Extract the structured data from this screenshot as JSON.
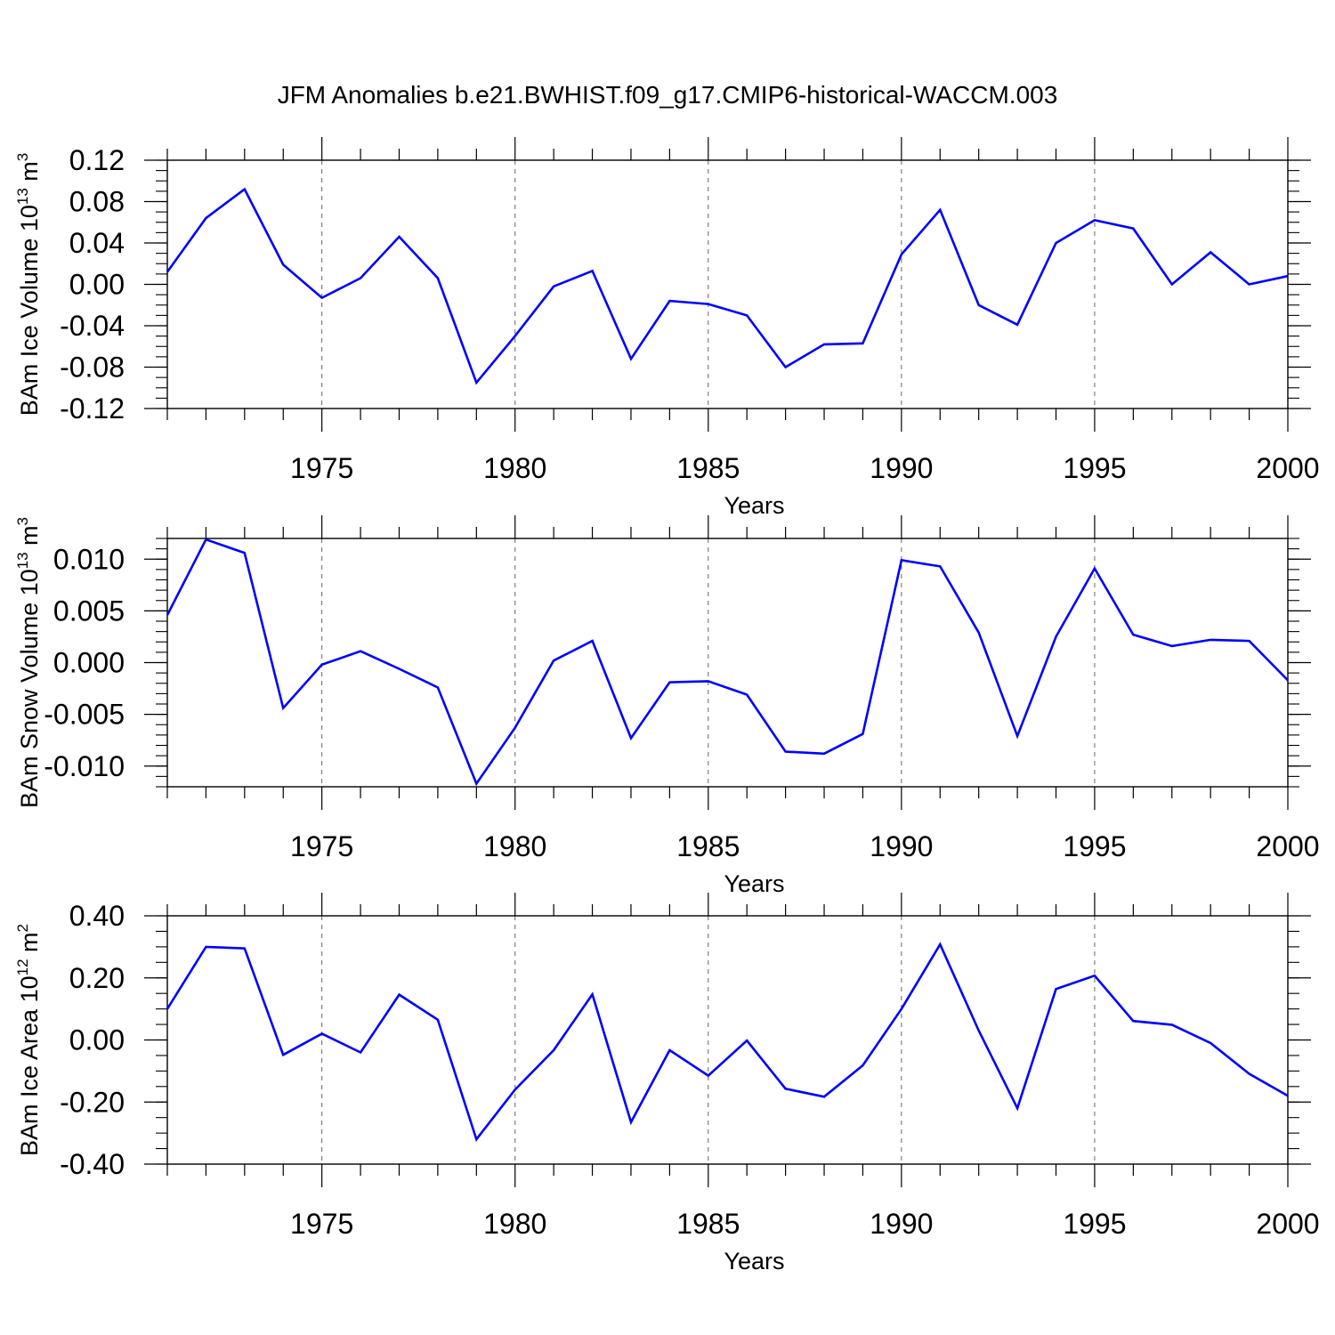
{
  "figure": {
    "title": "JFM Anomalies b.e21.BWHIST.f09_g17.CMIP6-historical-WACCM.003",
    "line_color": "#0000ff"
  },
  "chart_data": [
    {
      "type": "line",
      "title": "",
      "xlabel": "Years",
      "ylabel": "BAm Ice Volume 10^13 m^3",
      "ylabel_parts": {
        "pre": "BAm Ice Volume 10",
        "exp1": "13",
        "mid": " m",
        "exp2": "3"
      },
      "xlim": [
        1971,
        2000
      ],
      "ylim": [
        -0.12,
        0.12
      ],
      "x_ticks": [
        1975,
        1980,
        1985,
        1990,
        1995,
        2000
      ],
      "y_ticks": [
        -0.12,
        -0.08,
        -0.04,
        0.0,
        0.04,
        0.08,
        0.12
      ],
      "y_tick_labels": [
        "-0.12",
        "-0.08",
        "-0.04",
        "0.00",
        "0.04",
        "0.08",
        "0.12"
      ],
      "y_minor_step": 0.01,
      "grid": "vertical dashed at labeled years",
      "series": [
        {
          "color": "#0000ff",
          "x": [
            1971,
            1972,
            1973,
            1974,
            1975,
            1976,
            1977,
            1978,
            1979,
            1980,
            1981,
            1982,
            1983,
            1984,
            1985,
            1986,
            1987,
            1988,
            1989,
            1990,
            1991,
            1992,
            1993,
            1994,
            1995,
            1996,
            1997,
            1998,
            1999,
            2000
          ],
          "y": [
            0.012,
            0.064,
            0.092,
            0.019,
            -0.013,
            0.006,
            0.046,
            0.006,
            -0.095,
            -0.05,
            -0.002,
            0.013,
            -0.072,
            -0.016,
            -0.019,
            -0.03,
            -0.08,
            -0.058,
            -0.057,
            0.029,
            0.072,
            -0.02,
            -0.039,
            0.04,
            0.062,
            0.054,
            0.0,
            0.031,
            0.0,
            0.008
          ]
        }
      ]
    },
    {
      "type": "line",
      "title": "",
      "xlabel": "Years",
      "ylabel": "BAm Snow Volume 10^13 m^3",
      "ylabel_parts": {
        "pre": "BAm Snow Volume 10",
        "exp1": "13",
        "mid": " m",
        "exp2": "3"
      },
      "xlim": [
        1971,
        2000
      ],
      "ylim": [
        -0.012,
        0.012
      ],
      "x_ticks": [
        1975,
        1980,
        1985,
        1990,
        1995,
        2000
      ],
      "y_ticks": [
        -0.01,
        -0.005,
        0.0,
        0.005,
        0.01
      ],
      "y_tick_labels": [
        "-0.010",
        "-0.005",
        "0.000",
        "0.005",
        "0.010"
      ],
      "y_minor_step": 0.001,
      "grid": "vertical dashed at labeled years",
      "series": [
        {
          "color": "#0000ff",
          "x": [
            1971,
            1972,
            1973,
            1974,
            1975,
            1976,
            1977,
            1978,
            1979,
            1980,
            1981,
            1982,
            1983,
            1984,
            1985,
            1986,
            1987,
            1988,
            1989,
            1990,
            1991,
            1992,
            1993,
            1994,
            1995,
            1996,
            1997,
            1998,
            1999,
            2000
          ],
          "y": [
            0.0046,
            0.0119,
            0.0106,
            -0.0044,
            -0.0002,
            0.0011,
            -0.0006,
            -0.0024,
            -0.0117,
            -0.0063,
            0.0002,
            0.0021,
            -0.0073,
            -0.0019,
            -0.0018,
            -0.0031,
            -0.0086,
            -0.0088,
            -0.0069,
            0.0099,
            0.0093,
            0.0029,
            -0.0071,
            0.0025,
            0.0091,
            0.0027,
            0.0016,
            0.0022,
            0.0021,
            -0.0017
          ]
        }
      ]
    },
    {
      "type": "line",
      "title": "",
      "xlabel": "Years",
      "ylabel": "BAm Ice Area 10^12 m^2",
      "ylabel_parts": {
        "pre": "BAm Ice Area 10",
        "exp1": "12",
        "mid": " m",
        "exp2": "2"
      },
      "xlim": [
        1971,
        2000
      ],
      "ylim": [
        -0.4,
        0.4
      ],
      "x_ticks": [
        1975,
        1980,
        1985,
        1990,
        1995,
        2000
      ],
      "y_ticks": [
        -0.4,
        -0.2,
        0.0,
        0.2,
        0.4
      ],
      "y_tick_labels": [
        "-0.40",
        "-0.20",
        "0.00",
        "0.20",
        "0.40"
      ],
      "y_minor_step": 0.05,
      "grid": "vertical dashed at labeled years",
      "series": [
        {
          "color": "#0000ff",
          "x": [
            1971,
            1972,
            1973,
            1974,
            1975,
            1976,
            1977,
            1978,
            1979,
            1980,
            1981,
            1982,
            1983,
            1984,
            1985,
            1986,
            1987,
            1988,
            1989,
            1990,
            1991,
            1992,
            1993,
            1994,
            1995,
            1996,
            1997,
            1998,
            1999,
            2000
          ],
          "y": [
            0.1,
            0.3,
            0.295,
            -0.048,
            0.02,
            -0.04,
            0.146,
            0.065,
            -0.32,
            -0.16,
            -0.033,
            0.147,
            -0.265,
            -0.033,
            -0.115,
            -0.002,
            -0.157,
            -0.183,
            -0.082,
            0.1,
            0.308,
            0.03,
            -0.22,
            0.164,
            0.207,
            0.061,
            0.049,
            -0.01,
            -0.109,
            -0.18
          ]
        }
      ]
    }
  ]
}
